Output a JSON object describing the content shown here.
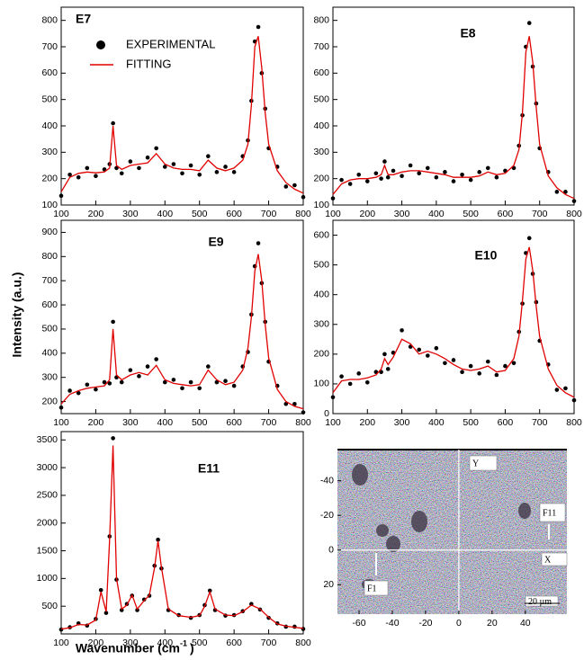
{
  "y_label": "Intensity (a.u.)",
  "x_label": {
    "text": "Wavenumber (cm",
    "superscript": "-1",
    "suffix": ")"
  },
  "chart_data": [
    {
      "type": "line",
      "title": "E7",
      "legend": true,
      "x": [
        100,
        125,
        150,
        175,
        200,
        225,
        240,
        250,
        260,
        275,
        300,
        325,
        350,
        375,
        400,
        425,
        450,
        475,
        500,
        525,
        550,
        575,
        600,
        625,
        640,
        650,
        660,
        670,
        680,
        690,
        700,
        725,
        750,
        775,
        800
      ],
      "series": [
        {
          "name": "EXPERIMENTAL",
          "color": "#000000",
          "marker": "circle",
          "values": [
            135,
            215,
            205,
            240,
            210,
            235,
            255,
            410,
            240,
            220,
            265,
            240,
            280,
            315,
            245,
            255,
            220,
            250,
            215,
            285,
            225,
            245,
            225,
            285,
            345,
            495,
            720,
            775,
            600,
            465,
            315,
            245,
            170,
            175,
            130
          ]
        },
        {
          "name": "FITTING",
          "color": "#e00000",
          "marker": "line",
          "values": [
            150,
            205,
            220,
            225,
            222,
            225,
            240,
            400,
            250,
            235,
            250,
            255,
            260,
            295,
            255,
            240,
            235,
            235,
            230,
            270,
            240,
            230,
            240,
            270,
            330,
            480,
            700,
            740,
            620,
            450,
            330,
            230,
            185,
            160,
            145
          ]
        }
      ],
      "xlim": [
        100,
        800
      ],
      "xticks": [
        100,
        200,
        300,
        400,
        500,
        600,
        700,
        800
      ],
      "ylim": [
        100,
        850
      ],
      "yticks": [
        100,
        200,
        300,
        400,
        500,
        600,
        700,
        800
      ]
    },
    {
      "type": "line",
      "title": "E8",
      "legend": false,
      "x": [
        100,
        125,
        150,
        175,
        200,
        225,
        240,
        250,
        260,
        275,
        300,
        325,
        350,
        375,
        400,
        425,
        450,
        475,
        500,
        525,
        550,
        575,
        600,
        625,
        640,
        650,
        660,
        670,
        680,
        690,
        700,
        725,
        750,
        775,
        800
      ],
      "series": [
        {
          "name": "EXPERIMENTAL",
          "color": "#000000",
          "marker": "circle",
          "values": [
            125,
            195,
            180,
            215,
            190,
            220,
            200,
            265,
            205,
            230,
            210,
            250,
            220,
            240,
            205,
            225,
            190,
            215,
            195,
            225,
            240,
            205,
            230,
            240,
            325,
            440,
            700,
            790,
            625,
            485,
            315,
            225,
            150,
            150,
            115
          ]
        },
        {
          "name": "FITTING",
          "color": "#e00000",
          "marker": "line",
          "values": [
            140,
            180,
            195,
            200,
            200,
            205,
            215,
            250,
            215,
            215,
            225,
            230,
            230,
            225,
            220,
            215,
            205,
            205,
            205,
            210,
            225,
            215,
            220,
            250,
            310,
            450,
            680,
            740,
            640,
            470,
            330,
            210,
            165,
            140,
            125
          ]
        }
      ],
      "xlim": [
        100,
        800
      ],
      "xticks": [
        100,
        200,
        300,
        400,
        500,
        600,
        700,
        800
      ],
      "ylim": [
        100,
        850
      ],
      "yticks": [
        100,
        200,
        300,
        400,
        500,
        600,
        700,
        800
      ]
    },
    {
      "type": "line",
      "title": "E9",
      "legend": false,
      "x": [
        100,
        125,
        150,
        175,
        200,
        225,
        240,
        250,
        260,
        275,
        300,
        325,
        350,
        375,
        400,
        425,
        450,
        475,
        500,
        525,
        550,
        575,
        600,
        625,
        640,
        650,
        660,
        670,
        680,
        690,
        700,
        725,
        750,
        775,
        800
      ],
      "series": [
        {
          "name": "EXPERIMENTAL",
          "color": "#000000",
          "marker": "circle",
          "values": [
            175,
            245,
            235,
            270,
            250,
            280,
            275,
            530,
            300,
            280,
            330,
            305,
            345,
            375,
            280,
            290,
            255,
            280,
            255,
            345,
            280,
            285,
            265,
            345,
            405,
            560,
            760,
            855,
            690,
            530,
            365,
            265,
            190,
            190,
            155
          ]
        },
        {
          "name": "FITTING",
          "color": "#e00000",
          "marker": "line",
          "values": [
            190,
            230,
            245,
            255,
            260,
            265,
            290,
            500,
            310,
            290,
            310,
            320,
            310,
            350,
            290,
            275,
            270,
            265,
            270,
            330,
            290,
            270,
            280,
            330,
            420,
            550,
            740,
            810,
            700,
            520,
            380,
            250,
            200,
            180,
            170
          ]
        }
      ],
      "xlim": [
        100,
        800
      ],
      "xticks": [
        100,
        200,
        300,
        400,
        500,
        600,
        700,
        800
      ],
      "ylim": [
        150,
        950
      ],
      "yticks": [
        200,
        300,
        400,
        500,
        600,
        700,
        800,
        900
      ]
    },
    {
      "type": "line",
      "title": "E10",
      "legend": false,
      "x": [
        100,
        125,
        150,
        175,
        200,
        225,
        240,
        250,
        260,
        275,
        300,
        325,
        350,
        375,
        400,
        425,
        450,
        475,
        500,
        525,
        550,
        575,
        600,
        625,
        640,
        650,
        660,
        670,
        680,
        690,
        700,
        725,
        750,
        775,
        800
      ],
      "series": [
        {
          "name": "EXPERIMENTAL",
          "color": "#000000",
          "marker": "circle",
          "values": [
            55,
            125,
            100,
            135,
            105,
            140,
            140,
            200,
            150,
            205,
            280,
            225,
            215,
            195,
            220,
            170,
            180,
            140,
            160,
            135,
            175,
            130,
            160,
            170,
            275,
            370,
            540,
            590,
            470,
            375,
            245,
            165,
            80,
            85,
            45
          ]
        },
        {
          "name": "FITTING",
          "color": "#e00000",
          "marker": "line",
          "values": [
            70,
            110,
            115,
            115,
            120,
            130,
            150,
            185,
            165,
            190,
            250,
            235,
            200,
            210,
            200,
            185,
            165,
            150,
            145,
            150,
            160,
            140,
            145,
            185,
            260,
            380,
            520,
            560,
            480,
            360,
            260,
            150,
            95,
            70,
            55
          ]
        }
      ],
      "xlim": [
        100,
        800
      ],
      "xticks": [
        100,
        200,
        300,
        400,
        500,
        600,
        700,
        800
      ],
      "ylim": [
        0,
        650
      ],
      "yticks": [
        0,
        100,
        200,
        300,
        400,
        500,
        600
      ]
    },
    {
      "type": "line",
      "title": "E11",
      "legend": false,
      "x": [
        100,
        125,
        150,
        175,
        200,
        215,
        230,
        240,
        250,
        260,
        275,
        290,
        305,
        320,
        340,
        355,
        370,
        380,
        390,
        410,
        440,
        475,
        500,
        515,
        530,
        545,
        575,
        600,
        625,
        650,
        675,
        700,
        725,
        750,
        775,
        800
      ],
      "series": [
        {
          "name": "EXPERIMENTAL",
          "color": "#000000",
          "marker": "circle",
          "values": [
            80,
            120,
            190,
            150,
            270,
            790,
            380,
            1760,
            3530,
            980,
            430,
            540,
            690,
            430,
            620,
            690,
            1230,
            1700,
            1180,
            430,
            340,
            290,
            340,
            520,
            780,
            430,
            330,
            340,
            410,
            540,
            440,
            290,
            190,
            130,
            130,
            90
          ]
        },
        {
          "name": "FITTING",
          "color": "#e00000",
          "marker": "line",
          "values": [
            90,
            110,
            170,
            160,
            250,
            760,
            400,
            1700,
            3400,
            1000,
            450,
            520,
            700,
            450,
            600,
            700,
            1200,
            1680,
            1200,
            450,
            330,
            300,
            330,
            500,
            760,
            450,
            340,
            330,
            400,
            520,
            450,
            300,
            180,
            140,
            120,
            100
          ]
        }
      ],
      "xlim": [
        100,
        800
      ],
      "xticks": [
        100,
        200,
        300,
        400,
        500,
        600,
        700,
        800
      ],
      "ylim": [
        0,
        3650
      ],
      "yticks": [
        500,
        1000,
        1500,
        2000,
        2500,
        3000,
        3500
      ]
    },
    {
      "type": "image",
      "y_inverted": true,
      "xlim": [
        -73,
        65
      ],
      "xticks": [
        -60,
        -40,
        -20,
        0,
        20,
        40
      ],
      "ylim": [
        -58,
        37
      ],
      "yticks": [
        -40,
        -20,
        0,
        20
      ],
      "annotations": [
        "Y",
        "X",
        "F11",
        "F1",
        "20 µm"
      ]
    }
  ]
}
